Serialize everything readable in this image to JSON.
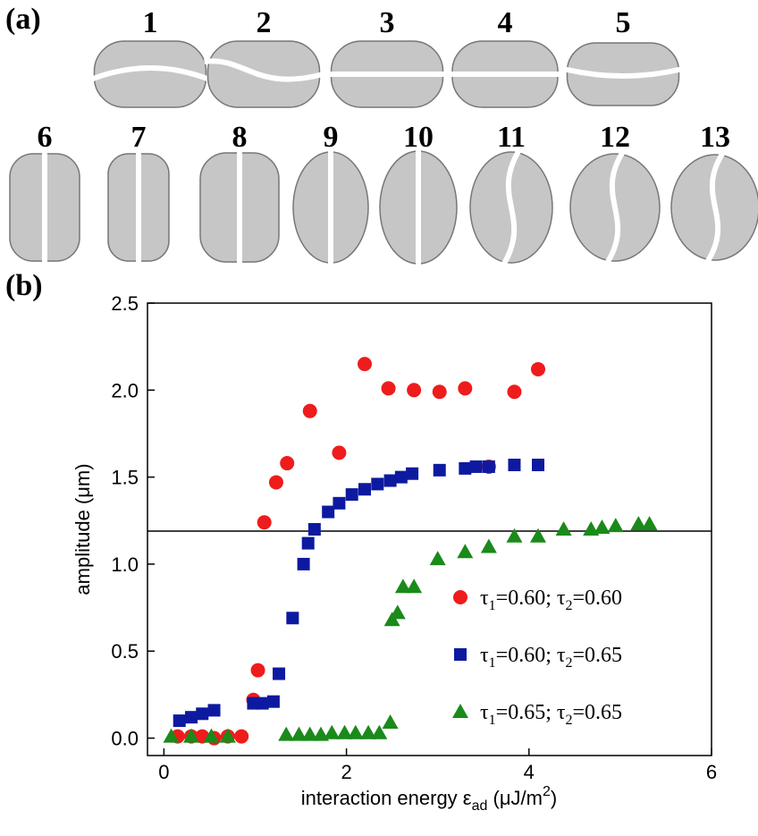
{
  "panel_a": {
    "label": "(a)",
    "labels": [
      "1",
      "2",
      "3",
      "4",
      "5",
      "6",
      "7",
      "8",
      "9",
      "10",
      "11",
      "12",
      "13"
    ]
  },
  "chart_data": {
    "type": "scatter",
    "panel_label": "(b)",
    "xlabel": [
      "interaction energy ε",
      "ad",
      " (μJ/m",
      "2",
      ")"
    ],
    "ylabel": "amplitude (μm)",
    "xlim": [
      -0.18,
      6
    ],
    "ylim": [
      -0.1,
      2.5
    ],
    "xticks": [
      0,
      2,
      4,
      6
    ],
    "yticks": [
      {
        "value": 0,
        "label": "0.0"
      },
      0.5,
      {
        "value": 1,
        "label": "1.0"
      },
      1.5,
      {
        "value": 2,
        "label": "2.0"
      },
      2.5
    ],
    "hline": 1.19,
    "series": [
      {
        "name": [
          "τ",
          "1",
          "=0.60; τ",
          "2",
          "=0.60"
        ],
        "color": "#ee1c1c",
        "marker": "circle",
        "x": [
          0.15,
          0.3,
          0.42,
          0.55,
          0.7,
          0.85,
          0.98,
          1.03,
          1.1,
          1.23,
          1.35,
          1.6,
          1.92,
          2.2,
          2.46,
          2.74,
          3.02,
          3.3,
          3.56,
          3.84,
          4.1
        ],
        "values": [
          0.01,
          0.01,
          0.01,
          0.0,
          0.01,
          0.01,
          0.22,
          0.39,
          1.24,
          1.47,
          1.58,
          1.88,
          1.64,
          2.15,
          2.01,
          2.0,
          1.99,
          2.01,
          1.56,
          1.99,
          2.12
        ]
      },
      {
        "name": [
          "τ",
          "1",
          "=0.60; τ",
          "2",
          "=0.65"
        ],
        "color": "#0d1aa0",
        "marker": "square",
        "x": [
          0.17,
          0.3,
          0.42,
          0.55,
          0.98,
          1.08,
          1.2,
          1.26,
          1.41,
          1.53,
          1.58,
          1.65,
          1.8,
          1.92,
          2.06,
          2.2,
          2.34,
          2.48,
          2.6,
          2.72,
          3.02,
          3.3,
          3.42,
          3.56,
          3.84,
          4.1
        ],
        "values": [
          0.1,
          0.12,
          0.14,
          0.16,
          0.2,
          0.2,
          0.21,
          0.37,
          0.69,
          1.0,
          1.12,
          1.2,
          1.3,
          1.35,
          1.4,
          1.43,
          1.46,
          1.48,
          1.5,
          1.52,
          1.54,
          1.55,
          1.56,
          1.56,
          1.57,
          1.57
        ]
      },
      {
        "name": [
          "τ",
          "1",
          "=0.65; τ",
          "2",
          "=0.65"
        ],
        "color": "#1a8a1a",
        "marker": "triangle",
        "x": [
          0.08,
          0.3,
          0.52,
          0.7,
          1.34,
          1.48,
          1.6,
          1.72,
          1.84,
          1.98,
          2.1,
          2.24,
          2.36,
          2.48,
          2.5,
          2.56,
          2.62,
          2.74,
          3.0,
          3.3,
          3.56,
          3.84,
          4.1,
          4.38,
          4.68,
          4.8,
          4.95,
          5.2,
          5.32
        ],
        "values": [
          0.01,
          0.01,
          0.01,
          0.01,
          0.02,
          0.02,
          0.02,
          0.02,
          0.03,
          0.03,
          0.03,
          0.03,
          0.03,
          0.09,
          0.68,
          0.72,
          0.87,
          0.87,
          1.03,
          1.07,
          1.1,
          1.16,
          1.16,
          1.2,
          1.2,
          1.21,
          1.22,
          1.23,
          1.23
        ]
      }
    ]
  }
}
